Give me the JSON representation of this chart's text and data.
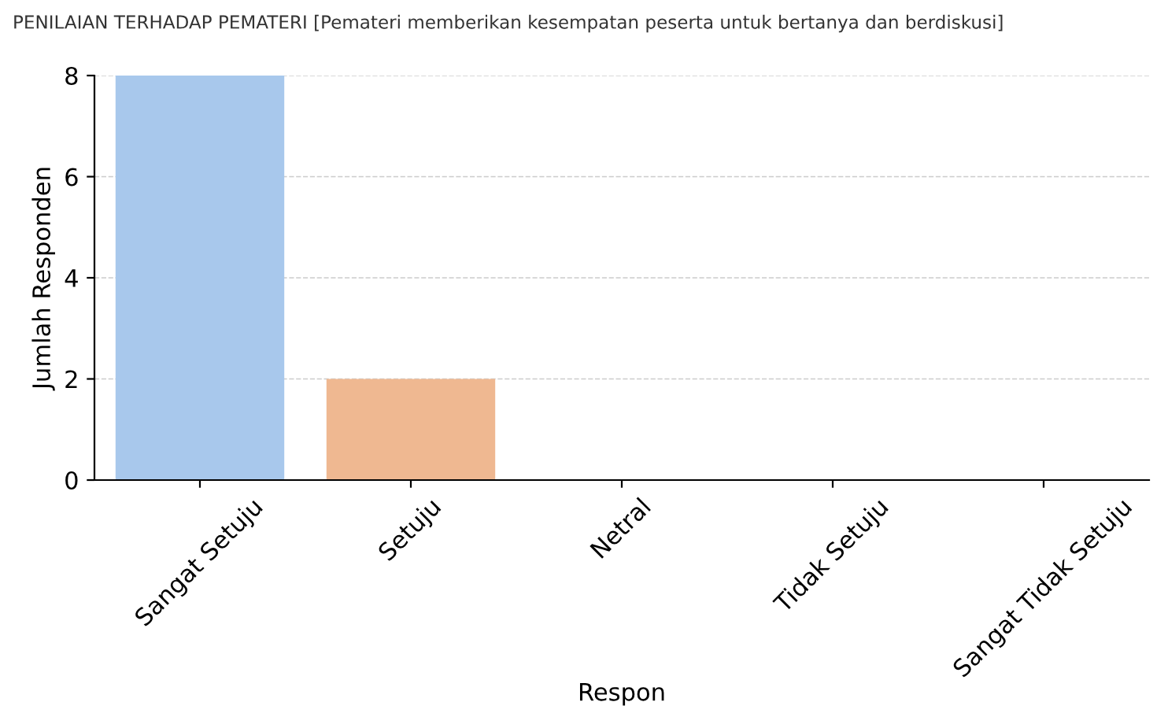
{
  "chart_data": {
    "type": "bar",
    "title": "PENILAIAN TERHADAP PEMATERI [Pemateri memberikan kesempatan peserta untuk bertanya dan berdiskusi]",
    "xlabel": "Respon",
    "ylabel": "Jumlah Responden",
    "categories": [
      "Sangat Setuju",
      "Setuju",
      "Netral",
      "Tidak Setuju",
      "Sangat Tidak Setuju"
    ],
    "values": [
      8,
      2,
      0,
      0,
      0
    ],
    "colors": [
      "#a8c8ec",
      "#efb891",
      "#8de5a1",
      "#ff9f9b",
      "#d0bbff"
    ],
    "ylim": [
      0,
      8
    ],
    "yticks": [
      0,
      2,
      4,
      6,
      8
    ],
    "grid": "y"
  }
}
